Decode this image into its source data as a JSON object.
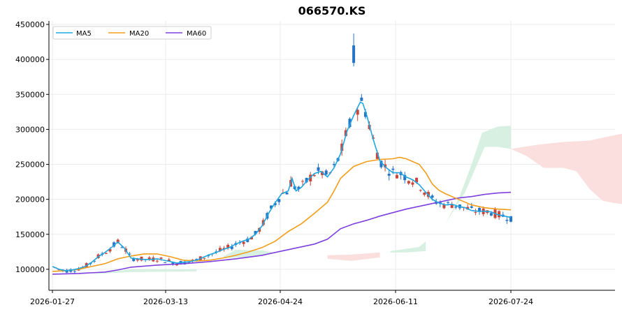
{
  "chart_data": {
    "title": "066570.KS",
    "type": "candlestick",
    "ylim": [
      70000,
      455000
    ],
    "y_ticks": [
      100000,
      150000,
      200000,
      250000,
      300000,
      350000,
      400000,
      450000
    ],
    "y_tick_labels": [
      "100000",
      "150000",
      "200000",
      "250000",
      "300000",
      "350000",
      "400000",
      "450000"
    ],
    "x_tick_labels": [
      "2026-01-27",
      "2026-03-13",
      "2026-04-24",
      "2026-06-11",
      "2026-07-24"
    ],
    "legend": {
      "placement": "top-left",
      "entries": [
        {
          "name": "MA5",
          "color": "#1ea7de"
        },
        {
          "name": "MA20",
          "color": "#f29d1a"
        },
        {
          "name": "MA60",
          "color": "#7d40df"
        }
      ]
    },
    "colors": {
      "up": "#c8463c",
      "down": "#2674c8",
      "cloud_bull": "#d5efdf",
      "cloud_bear": "#fbdcdc"
    },
    "series_ma5": [
      [
        0,
        104000
      ],
      [
        5,
        100000
      ],
      [
        10,
        98000
      ],
      [
        15,
        99000
      ],
      [
        20,
        101000
      ],
      [
        25,
        104000
      ],
      [
        30,
        110000
      ],
      [
        35,
        118000
      ],
      [
        40,
        124000
      ],
      [
        45,
        131000
      ],
      [
        50,
        139000
      ],
      [
        55,
        130000
      ],
      [
        60,
        116000
      ],
      [
        65,
        115000
      ],
      [
        70,
        114000
      ],
      [
        75,
        114000
      ],
      [
        80,
        115000
      ],
      [
        85,
        113000
      ],
      [
        90,
        111000
      ],
      [
        95,
        109000
      ],
      [
        100,
        110000
      ],
      [
        105,
        111000
      ],
      [
        110,
        113000
      ],
      [
        115,
        117000
      ],
      [
        120,
        121000
      ],
      [
        125,
        124000
      ],
      [
        130,
        128000
      ],
      [
        135,
        131000
      ],
      [
        140,
        136000
      ],
      [
        145,
        140000
      ],
      [
        150,
        143000
      ],
      [
        155,
        150000
      ],
      [
        160,
        162000
      ],
      [
        165,
        180000
      ],
      [
        170,
        195000
      ],
      [
        175,
        208000
      ],
      [
        180,
        212000
      ],
      [
        183,
        230000
      ],
      [
        186,
        212000
      ],
      [
        190,
        217000
      ],
      [
        195,
        228000
      ],
      [
        200,
        237000
      ],
      [
        205,
        240000
      ],
      [
        210,
        232000
      ],
      [
        215,
        245000
      ],
      [
        220,
        265000
      ],
      [
        225,
        298000
      ],
      [
        230,
        320000
      ],
      [
        235,
        339000
      ],
      [
        237,
        337000
      ],
      [
        240,
        320000
      ],
      [
        245,
        285000
      ],
      [
        250,
        255000
      ],
      [
        255,
        245000
      ],
      [
        260,
        238000
      ],
      [
        265,
        238000
      ],
      [
        270,
        232000
      ],
      [
        275,
        228000
      ],
      [
        280,
        221000
      ],
      [
        285,
        210000
      ],
      [
        290,
        200000
      ],
      [
        295,
        195000
      ],
      [
        300,
        192000
      ],
      [
        305,
        193000
      ],
      [
        310,
        190000
      ],
      [
        315,
        188000
      ],
      [
        320,
        184000
      ],
      [
        325,
        183000
      ],
      [
        330,
        183000
      ],
      [
        335,
        182000
      ],
      [
        340,
        178000
      ],
      [
        345,
        176000
      ],
      [
        350,
        174000
      ]
    ],
    "series_ma20": [
      [
        0,
        97000
      ],
      [
        10,
        98000
      ],
      [
        20,
        100000
      ],
      [
        30,
        104000
      ],
      [
        40,
        108000
      ],
      [
        50,
        115000
      ],
      [
        60,
        119000
      ],
      [
        70,
        122000
      ],
      [
        80,
        122000
      ],
      [
        90,
        118000
      ],
      [
        100,
        113000
      ],
      [
        110,
        112000
      ],
      [
        120,
        113000
      ],
      [
        130,
        116000
      ],
      [
        140,
        120000
      ],
      [
        150,
        125000
      ],
      [
        160,
        131000
      ],
      [
        170,
        140000
      ],
      [
        180,
        154000
      ],
      [
        190,
        165000
      ],
      [
        200,
        180000
      ],
      [
        210,
        196000
      ],
      [
        215,
        212000
      ],
      [
        220,
        230000
      ],
      [
        230,
        247000
      ],
      [
        240,
        254000
      ],
      [
        250,
        257000
      ],
      [
        260,
        258000
      ],
      [
        265,
        260000
      ],
      [
        270,
        258000
      ],
      [
        280,
        250000
      ],
      [
        285,
        238000
      ],
      [
        290,
        222000
      ],
      [
        295,
        213000
      ],
      [
        300,
        208000
      ],
      [
        310,
        200000
      ],
      [
        320,
        192000
      ],
      [
        330,
        188000
      ],
      [
        340,
        186000
      ],
      [
        350,
        185000
      ]
    ],
    "series_ma60": [
      [
        0,
        93000
      ],
      [
        20,
        94000
      ],
      [
        40,
        96000
      ],
      [
        50,
        99000
      ],
      [
        60,
        103000
      ],
      [
        80,
        106000
      ],
      [
        100,
        108000
      ],
      [
        120,
        111000
      ],
      [
        140,
        115000
      ],
      [
        160,
        120000
      ],
      [
        180,
        128000
      ],
      [
        190,
        132000
      ],
      [
        200,
        136000
      ],
      [
        210,
        143000
      ],
      [
        220,
        158000
      ],
      [
        230,
        165000
      ],
      [
        240,
        170000
      ],
      [
        250,
        176000
      ],
      [
        260,
        181000
      ],
      [
        270,
        186000
      ],
      [
        280,
        190000
      ],
      [
        290,
        194000
      ],
      [
        300,
        198000
      ],
      [
        310,
        202000
      ],
      [
        320,
        204000
      ],
      [
        330,
        207000
      ],
      [
        340,
        209000
      ],
      [
        350,
        210000
      ]
    ]
  }
}
